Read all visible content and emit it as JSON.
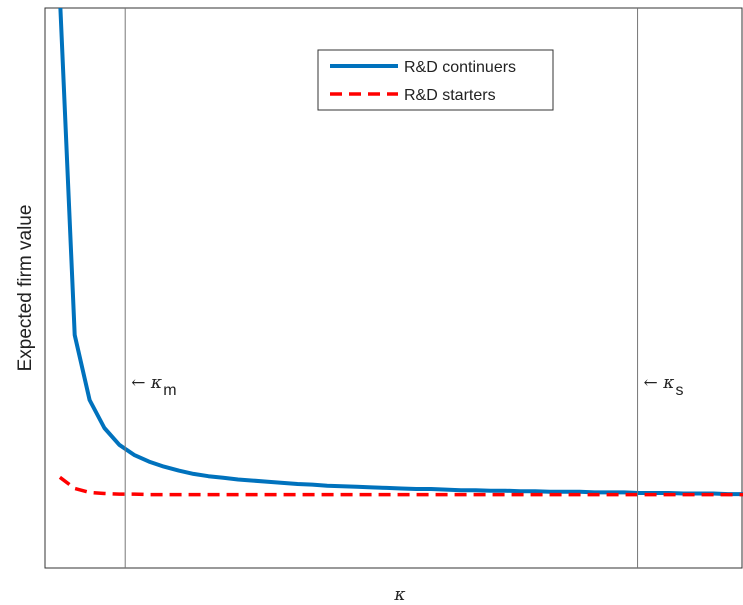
{
  "chart_data": {
    "type": "line",
    "xlabel": "κ",
    "ylabel": "Expected firm value",
    "xlim": [
      0,
      47
    ],
    "ylim": [
      0,
      10
    ],
    "x": [
      1,
      2,
      3,
      4,
      5,
      6,
      7,
      8,
      9,
      10,
      11,
      12,
      13,
      14,
      15,
      16,
      17,
      18,
      19,
      20,
      21,
      22,
      23,
      24,
      25,
      26,
      27,
      28,
      29,
      30,
      31,
      32,
      33,
      34,
      35,
      36,
      37,
      38,
      39,
      40,
      41,
      42,
      43,
      44,
      45,
      46,
      47
    ],
    "series": [
      {
        "name": "R&D continuers",
        "color": "#0072bd",
        "dash": "solid",
        "values": [
          10.2,
          4.16,
          3.0,
          2.5,
          2.2,
          2.02,
          1.9,
          1.81,
          1.74,
          1.68,
          1.64,
          1.61,
          1.58,
          1.56,
          1.54,
          1.52,
          1.5,
          1.49,
          1.47,
          1.46,
          1.45,
          1.44,
          1.43,
          1.42,
          1.41,
          1.41,
          1.4,
          1.39,
          1.39,
          1.38,
          1.38,
          1.37,
          1.37,
          1.36,
          1.36,
          1.36,
          1.35,
          1.35,
          1.35,
          1.34,
          1.34,
          1.34,
          1.33,
          1.33,
          1.33,
          1.32,
          1.32
        ]
      },
      {
        "name": "R&D starters",
        "color": "#ff0000",
        "dash": "dashed",
        "values": [
          1.62,
          1.42,
          1.35,
          1.33,
          1.32,
          1.32,
          1.31,
          1.31,
          1.31,
          1.31,
          1.31,
          1.31,
          1.31,
          1.31,
          1.31,
          1.31,
          1.31,
          1.31,
          1.31,
          1.31,
          1.31,
          1.31,
          1.31,
          1.31,
          1.31,
          1.31,
          1.31,
          1.31,
          1.31,
          1.31,
          1.31,
          1.31,
          1.31,
          1.31,
          1.31,
          1.31,
          1.31,
          1.31,
          1.31,
          1.31,
          1.31,
          1.31,
          1.31,
          1.31,
          1.31,
          1.31,
          1.31
        ]
      }
    ],
    "vlines": [
      {
        "x": 5.4,
        "label": "← κ",
        "sub": "m"
      },
      {
        "x": 39.9,
        "label": "← κ",
        "sub": "s"
      }
    ],
    "legend": "top-center"
  }
}
